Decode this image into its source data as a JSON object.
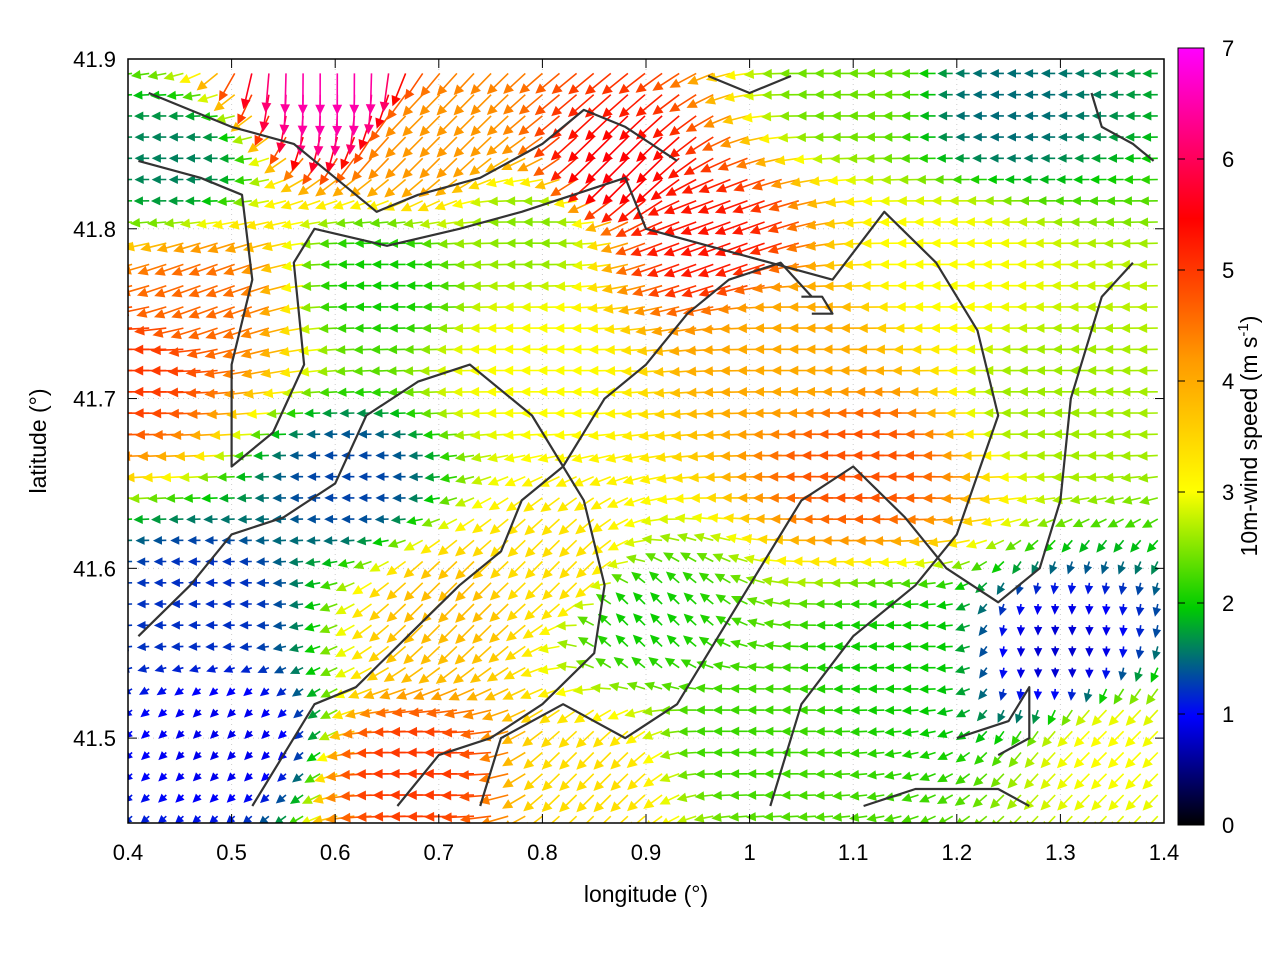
{
  "chart_data": {
    "type": "vector-field",
    "xlabel": "longitude (°)",
    "ylabel": "latitude (°)",
    "xlim": [
      0.4,
      1.4
    ],
    "ylim": [
      41.45,
      41.9
    ],
    "x_ticks": [
      "0.4",
      "0.5",
      "0.6",
      "0.7",
      "0.8",
      "0.9",
      "1",
      "1.1",
      "1.2",
      "1.3",
      "1.4"
    ],
    "y_ticks": [
      "41.5",
      "41.6",
      "41.7",
      "41.8",
      "41.9"
    ],
    "colorbar": {
      "label_main": "10m-wind speed (m s",
      "label_sup": "-1",
      "label_close": ")",
      "range": [
        0,
        7
      ],
      "ticks": [
        "0",
        "1",
        "2",
        "3",
        "4",
        "5",
        "6",
        "7"
      ],
      "colors": [
        "#000000",
        "#0000ff",
        "#00cc00",
        "#ffff00",
        "#ff9900",
        "#ff0000",
        "#ff00ff"
      ]
    },
    "wind_regions": [
      {
        "lon": 0.42,
        "lat": 41.72,
        "speed": 5.0,
        "dir": "W"
      },
      {
        "lon": 0.48,
        "lat": 41.76,
        "speed": 4.6,
        "dir": "WSW"
      },
      {
        "lon": 0.45,
        "lat": 41.84,
        "speed": 1.6,
        "dir": "W"
      },
      {
        "lon": 0.6,
        "lat": 41.89,
        "speed": 6.5,
        "dir": "S"
      },
      {
        "lon": 0.7,
        "lat": 41.86,
        "speed": 4.2,
        "dir": "SW"
      },
      {
        "lon": 0.88,
        "lat": 41.84,
        "speed": 5.5,
        "dir": "SW"
      },
      {
        "lon": 0.97,
        "lat": 41.8,
        "speed": 5.3,
        "dir": "WSW"
      },
      {
        "lon": 1.06,
        "lat": 41.73,
        "speed": 4.0,
        "dir": "W"
      },
      {
        "lon": 1.13,
        "lat": 41.66,
        "speed": 4.8,
        "dir": "W"
      },
      {
        "lon": 0.65,
        "lat": 41.77,
        "speed": 2.0,
        "dir": "W"
      },
      {
        "lon": 0.8,
        "lat": 41.72,
        "speed": 3.0,
        "dir": "W"
      },
      {
        "lon": 0.62,
        "lat": 41.65,
        "speed": 1.3,
        "dir": "W"
      },
      {
        "lon": 0.48,
        "lat": 41.58,
        "speed": 1.2,
        "dir": "W"
      },
      {
        "lon": 0.5,
        "lat": 41.5,
        "speed": 0.9,
        "dir": "SW"
      },
      {
        "lon": 0.72,
        "lat": 41.58,
        "speed": 3.8,
        "dir": "SW"
      },
      {
        "lon": 0.82,
        "lat": 41.6,
        "speed": 3.4,
        "dir": "SW"
      },
      {
        "lon": 0.9,
        "lat": 41.57,
        "speed": 2.0,
        "dir": "NW"
      },
      {
        "lon": 0.7,
        "lat": 41.48,
        "speed": 5.0,
        "dir": "W"
      },
      {
        "lon": 0.85,
        "lat": 41.48,
        "speed": 3.4,
        "dir": "SW"
      },
      {
        "lon": 1.0,
        "lat": 41.5,
        "speed": 2.2,
        "dir": "W"
      },
      {
        "lon": 1.15,
        "lat": 41.55,
        "speed": 2.0,
        "dir": "W"
      },
      {
        "lon": 1.3,
        "lat": 41.55,
        "speed": 0.8,
        "dir": "S"
      },
      {
        "lon": 1.3,
        "lat": 41.7,
        "speed": 2.6,
        "dir": "W"
      },
      {
        "lon": 1.2,
        "lat": 41.78,
        "speed": 3.0,
        "dir": "W"
      },
      {
        "lon": 1.25,
        "lat": 41.87,
        "speed": 1.5,
        "dir": "W"
      },
      {
        "lon": 1.1,
        "lat": 41.88,
        "speed": 2.4,
        "dir": "W"
      },
      {
        "lon": 0.8,
        "lat": 41.8,
        "speed": 2.5,
        "dir": "W"
      },
      {
        "lon": 1.35,
        "lat": 41.5,
        "speed": 3.0,
        "dir": "SW"
      }
    ],
    "contour_lines": [
      [
        [
          0.42,
          41.88
        ],
        [
          0.5,
          41.86
        ],
        [
          0.56,
          41.85
        ],
        [
          0.6,
          41.83
        ],
        [
          0.64,
          41.81
        ],
        [
          0.68,
          41.82
        ],
        [
          0.74,
          41.83
        ],
        [
          0.8,
          41.85
        ],
        [
          0.84,
          41.87
        ],
        [
          0.88,
          41.86
        ],
        [
          0.93,
          41.84
        ]
      ],
      [
        [
          0.41,
          41.84
        ],
        [
          0.47,
          41.83
        ],
        [
          0.51,
          41.82
        ],
        [
          0.52,
          41.77
        ],
        [
          0.5,
          41.72
        ],
        [
          0.5,
          41.66
        ],
        [
          0.54,
          41.68
        ],
        [
          0.57,
          41.72
        ],
        [
          0.56,
          41.78
        ],
        [
          0.58,
          41.8
        ],
        [
          0.65,
          41.79
        ],
        [
          0.72,
          41.8
        ],
        [
          0.78,
          41.81
        ],
        [
          0.83,
          41.82
        ],
        [
          0.88,
          41.83
        ],
        [
          0.9,
          41.8
        ],
        [
          0.96,
          41.79
        ],
        [
          1.02,
          41.78
        ],
        [
          1.08,
          41.77
        ],
        [
          1.13,
          41.81
        ],
        [
          1.18,
          41.78
        ],
        [
          1.22,
          41.74
        ],
        [
          1.24,
          41.69
        ],
        [
          1.2,
          41.62
        ],
        [
          1.16,
          41.59
        ],
        [
          1.1,
          41.56
        ],
        [
          1.05,
          41.52
        ],
        [
          1.02,
          41.46
        ]
      ],
      [
        [
          0.41,
          41.56
        ],
        [
          0.46,
          41.59
        ],
        [
          0.5,
          41.62
        ],
        [
          0.55,
          41.63
        ],
        [
          0.6,
          41.65
        ],
        [
          0.63,
          41.69
        ],
        [
          0.68,
          41.71
        ],
        [
          0.73,
          41.72
        ],
        [
          0.79,
          41.69
        ],
        [
          0.84,
          41.64
        ],
        [
          0.86,
          41.59
        ],
        [
          0.85,
          41.55
        ],
        [
          0.8,
          41.52
        ],
        [
          0.75,
          41.5
        ],
        [
          0.7,
          41.49
        ],
        [
          0.66,
          41.46
        ]
      ],
      [
        [
          0.52,
          41.46
        ],
        [
          0.55,
          41.49
        ],
        [
          0.58,
          41.52
        ],
        [
          0.62,
          41.53
        ],
        [
          0.67,
          41.56
        ],
        [
          0.72,
          41.59
        ],
        [
          0.76,
          41.61
        ],
        [
          0.78,
          41.64
        ],
        [
          0.82,
          41.66
        ],
        [
          0.86,
          41.7
        ],
        [
          0.9,
          41.72
        ],
        [
          0.94,
          41.75
        ],
        [
          0.98,
          41.77
        ],
        [
          1.03,
          41.78
        ],
        [
          1.06,
          41.76
        ]
      ],
      [
        [
          0.74,
          41.46
        ],
        [
          0.76,
          41.5
        ],
        [
          0.82,
          41.52
        ],
        [
          0.88,
          41.5
        ],
        [
          0.93,
          41.52
        ],
        [
          0.97,
          41.56
        ],
        [
          1.01,
          41.6
        ],
        [
          1.05,
          41.64
        ],
        [
          1.1,
          41.66
        ],
        [
          1.15,
          41.63
        ],
        [
          1.19,
          41.6
        ],
        [
          1.24,
          41.58
        ],
        [
          1.28,
          41.6
        ],
        [
          1.3,
          41.64
        ],
        [
          1.31,
          41.7
        ],
        [
          1.34,
          41.76
        ],
        [
          1.37,
          41.78
        ]
      ],
      [
        [
          1.11,
          41.46
        ],
        [
          1.16,
          41.47
        ],
        [
          1.2,
          41.47
        ],
        [
          1.24,
          41.47
        ],
        [
          1.27,
          41.46
        ]
      ],
      [
        [
          1.2,
          41.5
        ],
        [
          1.25,
          41.51
        ],
        [
          1.27,
          41.53
        ],
        [
          1.27,
          41.5
        ],
        [
          1.24,
          41.49
        ]
      ],
      [
        [
          1.33,
          41.88
        ],
        [
          1.34,
          41.86
        ],
        [
          1.37,
          41.85
        ],
        [
          1.39,
          41.84
        ]
      ],
      [
        [
          0.96,
          41.89
        ],
        [
          1.0,
          41.88
        ],
        [
          1.04,
          41.89
        ]
      ],
      [
        [
          1.05,
          41.76
        ],
        [
          1.07,
          41.76
        ],
        [
          1.08,
          41.75
        ],
        [
          1.06,
          41.75
        ]
      ]
    ]
  }
}
